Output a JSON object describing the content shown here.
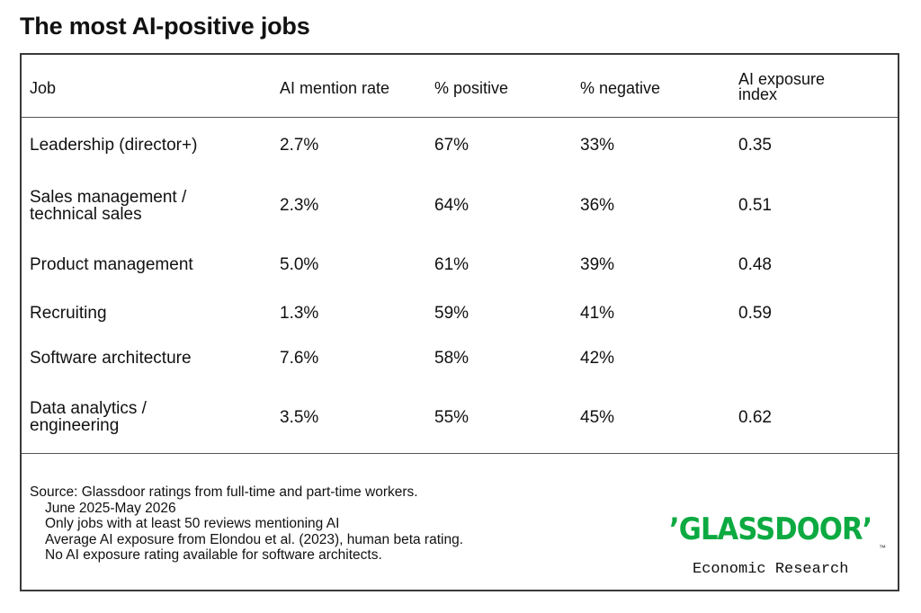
{
  "title": "The most AI-positive jobs",
  "chart_data": {
    "type": "table",
    "columns": [
      "Job",
      "AI mention rate",
      "% positive",
      "% negative",
      "AI exposure index"
    ],
    "rows": [
      {
        "job": "Leadership (director+)",
        "mention": "2.7%",
        "positive": "67%",
        "negative": "33%",
        "exposure": "0.35"
      },
      {
        "job": "Sales management / technical sales",
        "mention": "2.3%",
        "positive": "64%",
        "negative": "36%",
        "exposure": "0.51"
      },
      {
        "job": "Product management",
        "mention": "5.0%",
        "positive": "61%",
        "negative": "39%",
        "exposure": "0.48"
      },
      {
        "job": "Recruiting",
        "mention": "1.3%",
        "positive": "59%",
        "negative": "41%",
        "exposure": "0.59"
      },
      {
        "job": "Software architecture",
        "mention": "7.6%",
        "positive": "58%",
        "negative": "42%",
        "exposure": ""
      },
      {
        "job": "Data analytics / engineering",
        "mention": "3.5%",
        "positive": "55%",
        "negative": "45%",
        "exposure": "0.62"
      }
    ]
  },
  "source": [
    "Source: Glassdoor ratings from full-time and part-time workers.",
    "June 2025-May 2026",
    "Only jobs with at least 50 reviews mentioning AI",
    "Average AI exposure from Elondou et al. (2023), human beta rating.",
    "No AI exposure rating available for software architects."
  ],
  "logo": {
    "word": "’GLASSDOOR’",
    "trademark": "™",
    "subtitle": "Economic Research",
    "color": "#0caa41"
  }
}
